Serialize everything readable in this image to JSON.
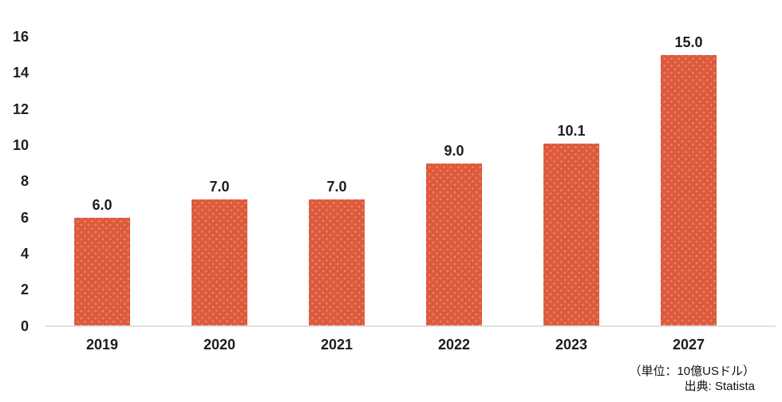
{
  "chart_data": {
    "type": "bar",
    "title": "",
    "xlabel": "",
    "ylabel": "",
    "categories": [
      "2019",
      "2020",
      "2021",
      "2022",
      "2023",
      "2027"
    ],
    "values": [
      6.0,
      7.0,
      7.0,
      9.0,
      10.1,
      15.0
    ],
    "value_labels": [
      "6.0",
      "7.0",
      "7.0",
      "9.0",
      "10.1",
      "15.0"
    ],
    "ylim": [
      0,
      16
    ],
    "yticks": [
      0,
      2,
      4,
      6,
      8,
      10,
      12,
      14,
      16
    ],
    "grid": false,
    "legend": null
  },
  "footnote": {
    "unit": "（単位：10億USドル）",
    "source": "出典: Statista"
  },
  "colors": {
    "bar": "#dd5a3b",
    "axis_line": "#e0e0e0",
    "text": "#1d1d1f"
  }
}
